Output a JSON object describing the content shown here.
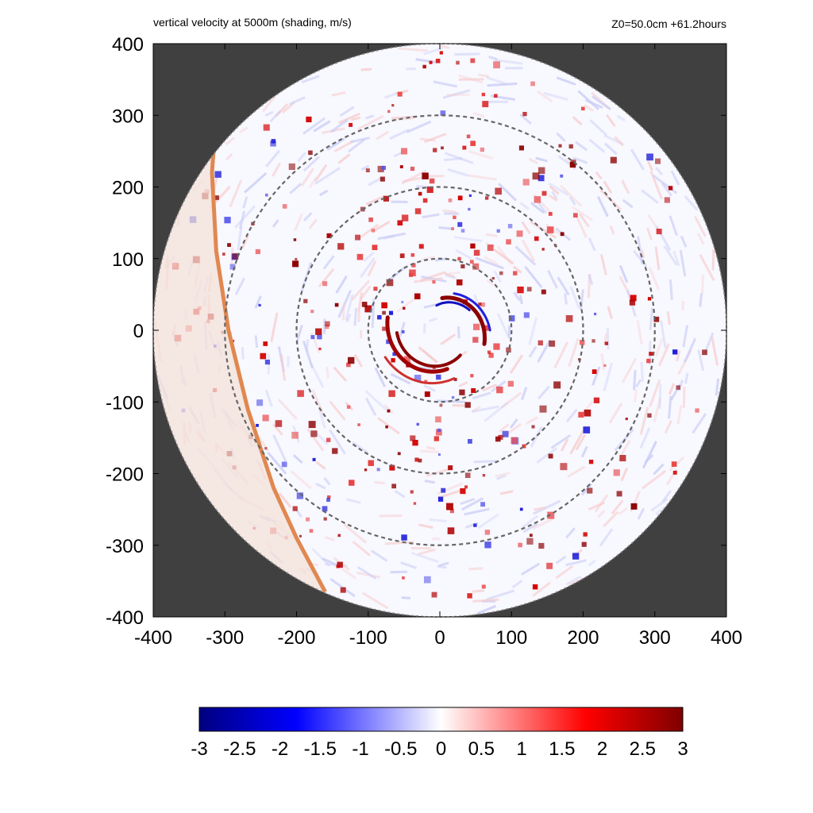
{
  "chart_data": {
    "type": "heatmap",
    "title": "vertical velocity at 5000m (shading, m/s)",
    "subtitle": "Z0=50.0cm  +61.2hours",
    "xlim": [
      -400,
      400
    ],
    "ylim": [
      -400,
      400
    ],
    "x_ticks": [
      "-400",
      "-300",
      "-200",
      "-100",
      "0",
      "100",
      "200",
      "300",
      "400"
    ],
    "y_ticks": [
      "400",
      "300",
      "200",
      "100",
      "0",
      "-100",
      "-200",
      "-300",
      "-400"
    ],
    "domain_radius": 400,
    "reference_circle_radii": [
      100,
      200,
      300
    ],
    "boundary_line": [
      [
        -310,
        330
      ],
      [
        -318,
        220
      ],
      [
        -312,
        110
      ],
      [
        -295,
        0
      ],
      [
        -268,
        -110
      ],
      [
        -232,
        -220
      ],
      [
        -200,
        -290
      ],
      [
        -160,
        -365
      ]
    ],
    "colorbar": {
      "range": [
        -3,
        3
      ],
      "ticks": [
        "-3",
        "-2.5",
        "-2",
        "-1.5",
        "-1",
        "-0.5",
        "0",
        "0.5",
        "1",
        "1.5",
        "2",
        "2.5",
        "3"
      ],
      "colors": [
        "#00007f",
        "#0000ff",
        "#ffffff",
        "#ff0000",
        "#7f0000"
      ]
    },
    "colors": {
      "background": "#404040",
      "boundary": "#e08850",
      "shaded_region": "#f4e2d8",
      "circles": "#666666"
    }
  }
}
